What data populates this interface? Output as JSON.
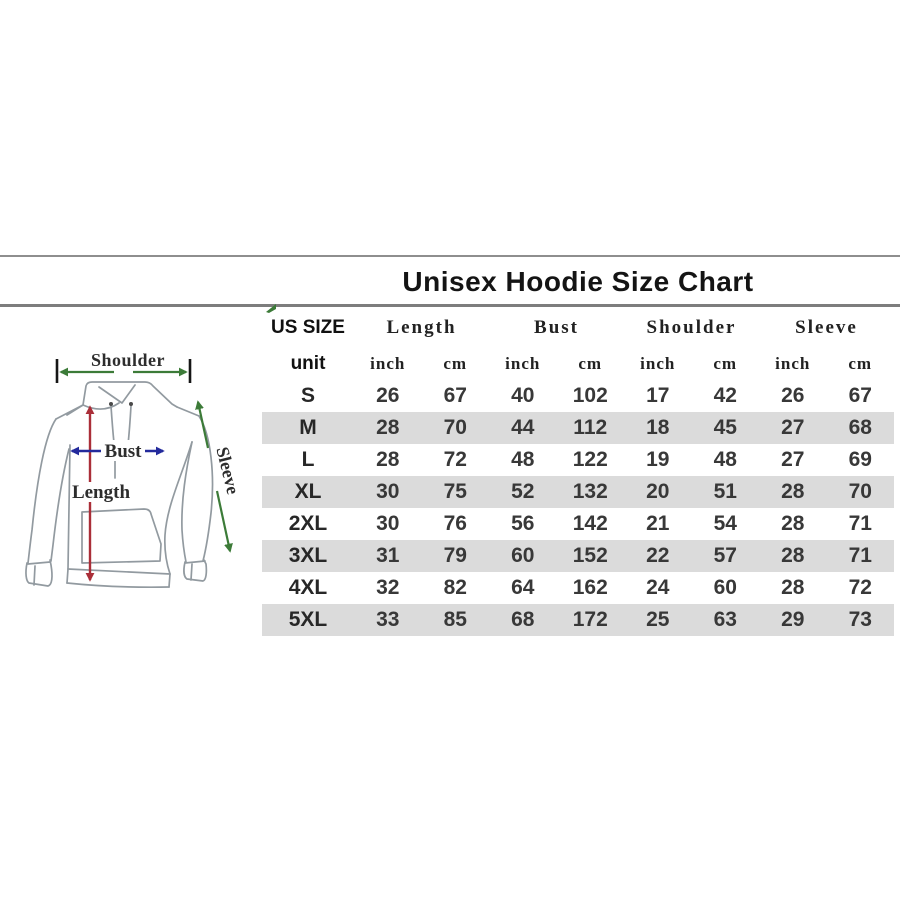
{
  "title": "Unisex Hoodie Size Chart",
  "diagram": {
    "labels": {
      "shoulder": "Shoulder",
      "bust": "Bust",
      "length": "Length",
      "sleeve": "Sleeve"
    },
    "colors": {
      "shoulder_arrow": "#3c7b38",
      "bust_arrow": "#232a9c",
      "length_arrow": "#aa2e38",
      "sleeve_arrow": "#3c7b38",
      "outline": "#929aa0"
    }
  },
  "table": {
    "corner_marker_color": "#3c7b38",
    "stripe_color": "#dbdbdb",
    "size_col_header": "US SIZE",
    "unit_row_label": "unit",
    "groups": [
      "Length",
      "Bust",
      "Shoulder",
      "Sleeve"
    ],
    "unit_labels": [
      "inch",
      "cm",
      "inch",
      "cm",
      "inch",
      "cm",
      "inch",
      "cm"
    ],
    "rows": [
      {
        "size": "S",
        "values": [
          "26",
          "67",
          "40",
          "102",
          "17",
          "42",
          "26",
          "67"
        ]
      },
      {
        "size": "M",
        "values": [
          "28",
          "70",
          "44",
          "112",
          "18",
          "45",
          "27",
          "68"
        ]
      },
      {
        "size": "L",
        "values": [
          "28",
          "72",
          "48",
          "122",
          "19",
          "48",
          "27",
          "69"
        ]
      },
      {
        "size": "XL",
        "values": [
          "30",
          "75",
          "52",
          "132",
          "20",
          "51",
          "28",
          "70"
        ]
      },
      {
        "size": "2XL",
        "values": [
          "30",
          "76",
          "56",
          "142",
          "21",
          "54",
          "28",
          "71"
        ]
      },
      {
        "size": "3XL",
        "values": [
          "31",
          "79",
          "60",
          "152",
          "22",
          "57",
          "28",
          "71"
        ]
      },
      {
        "size": "4XL",
        "values": [
          "32",
          "82",
          "64",
          "162",
          "24",
          "60",
          "28",
          "72"
        ]
      },
      {
        "size": "5XL",
        "values": [
          "33",
          "85",
          "68",
          "172",
          "25",
          "63",
          "29",
          "73"
        ]
      }
    ]
  },
  "chart_data": {
    "type": "table",
    "title": "Unisex Hoodie Size Chart",
    "columns": [
      "US SIZE",
      "Length inch",
      "Length cm",
      "Bust inch",
      "Bust cm",
      "Shoulder inch",
      "Shoulder cm",
      "Sleeve inch",
      "Sleeve cm"
    ],
    "rows": [
      [
        "S",
        26,
        67,
        40,
        102,
        17,
        42,
        26,
        67
      ],
      [
        "M",
        28,
        70,
        44,
        112,
        18,
        45,
        27,
        68
      ],
      [
        "L",
        28,
        72,
        48,
        122,
        19,
        48,
        27,
        69
      ],
      [
        "XL",
        30,
        75,
        52,
        132,
        20,
        51,
        28,
        70
      ],
      [
        "2XL",
        30,
        76,
        56,
        142,
        21,
        54,
        28,
        71
      ],
      [
        "3XL",
        31,
        79,
        60,
        152,
        22,
        57,
        28,
        71
      ],
      [
        "4XL",
        32,
        82,
        64,
        162,
        24,
        60,
        28,
        72
      ],
      [
        "5XL",
        33,
        85,
        68,
        172,
        25,
        63,
        29,
        73
      ]
    ]
  }
}
